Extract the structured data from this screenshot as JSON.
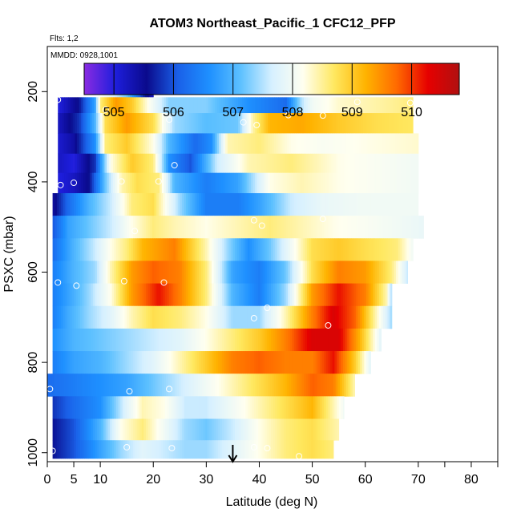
{
  "chart_data": {
    "type": "heatmap",
    "title": "ATOM3 Northeast_Pacific_1 CFC12_PFP",
    "flights_label": "Flts: 1,2",
    "mmdd_label": "MMDD: 0928,1001",
    "xlabel": "Latitude (deg N)",
    "ylabel": "PSXC (mbar)",
    "xlim": [
      0,
      85
    ],
    "ylim": [
      1020,
      100
    ],
    "x_ticks": [
      0,
      5,
      10,
      20,
      30,
      40,
      50,
      60,
      70,
      80
    ],
    "x_ticks_minor": [
      75,
      85
    ],
    "y_ticks": [
      200,
      400,
      600,
      800,
      1000
    ],
    "colorbar": {
      "min": 504.5,
      "max": 510.8,
      "ticks": [
        505,
        506,
        507,
        508,
        509,
        510
      ],
      "stops": [
        "#8a2be2",
        "#1e1edc",
        "#0a0a8c",
        "#1a60e8",
        "#1e90ff",
        "#5cc0ff",
        "#d6f0ff",
        "#fffff0",
        "#ffe860",
        "#ffb300",
        "#ff6a00",
        "#e60000",
        "#b01010"
      ]
    },
    "arrow_latitude": 35,
    "layers": [
      {
        "p": 200,
        "x0": 10,
        "x1": 20,
        "v": [
          [
            10,
            508.2
          ],
          [
            12,
            507.8
          ],
          [
            15,
            507.2
          ],
          [
            18,
            505.8
          ],
          [
            20,
            505.2
          ]
        ]
      },
      {
        "p": 225,
        "x0": 2,
        "x1": 69,
        "v": [
          [
            2,
            505.0
          ],
          [
            6,
            505.6
          ],
          [
            9,
            506.8
          ],
          [
            10,
            508.6
          ],
          [
            13,
            509.4
          ],
          [
            16,
            509.0
          ],
          [
            19,
            508.2
          ],
          [
            23,
            507.3
          ],
          [
            30,
            507.3
          ],
          [
            38,
            506.6
          ],
          [
            45,
            506.2
          ],
          [
            48,
            507.5
          ],
          [
            50,
            508.0
          ],
          [
            55,
            508.3
          ],
          [
            60,
            508.4
          ],
          [
            65,
            508.5
          ],
          [
            69,
            508.6
          ]
        ]
      },
      {
        "p": 270,
        "x0": 2,
        "x1": 69,
        "v": [
          [
            2,
            505.2
          ],
          [
            6,
            505.8
          ],
          [
            9,
            507.0
          ],
          [
            11,
            508.8
          ],
          [
            15,
            509.4
          ],
          [
            20,
            508.8
          ],
          [
            24,
            507.4
          ],
          [
            30,
            507.1
          ],
          [
            36,
            507.2
          ],
          [
            39,
            508.5
          ],
          [
            42,
            509.2
          ],
          [
            48,
            509.3
          ],
          [
            55,
            509.0
          ],
          [
            62,
            508.8
          ],
          [
            69,
            508.7
          ]
        ]
      },
      {
        "p": 315,
        "x0": 2,
        "x1": 70,
        "v": [
          [
            2,
            505.1
          ],
          [
            5,
            505.4
          ],
          [
            9,
            506.6
          ],
          [
            11,
            508.6
          ],
          [
            15,
            509.0
          ],
          [
            20,
            508.2
          ],
          [
            23,
            507.0
          ],
          [
            28,
            506.2
          ],
          [
            31,
            506.6
          ],
          [
            34,
            508.4
          ],
          [
            40,
            508.6
          ],
          [
            46,
            508.2
          ],
          [
            52,
            508.1
          ],
          [
            60,
            508.2
          ],
          [
            70,
            508.3
          ]
        ]
      },
      {
        "p": 360,
        "x0": 2,
        "x1": 70,
        "v": [
          [
            2,
            505.2
          ],
          [
            5,
            505.0
          ],
          [
            9,
            505.8
          ],
          [
            12,
            508.2
          ],
          [
            16,
            509.0
          ],
          [
            20,
            508.6
          ],
          [
            23,
            506.6
          ],
          [
            27,
            506.0
          ],
          [
            32,
            507.6
          ],
          [
            38,
            508.4
          ],
          [
            46,
            508.6
          ],
          [
            55,
            508.2
          ],
          [
            62,
            508.1
          ],
          [
            70,
            508.0
          ]
        ]
      },
      {
        "p": 400,
        "x0": 2,
        "x1": 70,
        "v": [
          [
            2,
            505.0
          ],
          [
            5,
            505.2
          ],
          [
            8,
            505.6
          ],
          [
            11,
            507.2
          ],
          [
            14,
            508.4
          ],
          [
            17,
            508.8
          ],
          [
            21,
            508.6
          ],
          [
            24,
            507.0
          ],
          [
            30,
            506.4
          ],
          [
            36,
            506.8
          ],
          [
            42,
            508.2
          ],
          [
            48,
            508.4
          ],
          [
            55,
            508.2
          ],
          [
            62,
            508.1
          ],
          [
            70,
            508.0
          ]
        ]
      },
      {
        "p": 450,
        "x0": 1,
        "x1": 70,
        "v": [
          [
            1,
            505.4
          ],
          [
            4,
            506.2
          ],
          [
            8,
            507.0
          ],
          [
            12,
            507.6
          ],
          [
            16,
            508.6
          ],
          [
            20,
            508.8
          ],
          [
            25,
            507.4
          ],
          [
            30,
            506.4
          ],
          [
            36,
            506.4
          ],
          [
            40,
            506.8
          ],
          [
            46,
            507.6
          ],
          [
            52,
            507.9
          ],
          [
            60,
            508.0
          ],
          [
            70,
            508.0
          ]
        ]
      },
      {
        "p": 500,
        "x0": 1,
        "x1": 71,
        "v": [
          [
            1,
            506.0
          ],
          [
            4,
            506.8
          ],
          [
            8,
            507.2
          ],
          [
            12,
            507.6
          ],
          [
            16,
            508.2
          ],
          [
            20,
            508.6
          ],
          [
            24,
            508.4
          ],
          [
            30,
            508.2
          ],
          [
            36,
            508.4
          ],
          [
            42,
            508.6
          ],
          [
            48,
            508.4
          ],
          [
            54,
            508.2
          ],
          [
            60,
            508.1
          ],
          [
            66,
            508.0
          ],
          [
            71,
            507.9
          ]
        ]
      },
      {
        "p": 550,
        "x0": 1,
        "x1": 69,
        "v": [
          [
            1,
            506.2
          ],
          [
            5,
            507.0
          ],
          [
            9,
            507.6
          ],
          [
            12,
            508.2
          ],
          [
            15,
            508.6
          ],
          [
            18,
            509.2
          ],
          [
            24,
            509.6
          ],
          [
            30,
            508.4
          ],
          [
            34,
            507.4
          ],
          [
            38,
            506.6
          ],
          [
            42,
            507.2
          ],
          [
            46,
            508.0
          ],
          [
            50,
            508.8
          ],
          [
            55,
            509.0
          ],
          [
            60,
            508.8
          ],
          [
            66,
            508.6
          ],
          [
            69,
            508.0
          ]
        ]
      },
      {
        "p": 600,
        "x0": 1,
        "x1": 68,
        "v": [
          [
            1,
            506.4
          ],
          [
            5,
            507.0
          ],
          [
            9,
            507.4
          ],
          [
            12,
            508.4
          ],
          [
            16,
            509.4
          ],
          [
            20,
            509.8
          ],
          [
            25,
            509.6
          ],
          [
            30,
            508.6
          ],
          [
            35,
            506.8
          ],
          [
            40,
            506.4
          ],
          [
            45,
            507.2
          ],
          [
            50,
            508.8
          ],
          [
            55,
            509.6
          ],
          [
            60,
            509.4
          ],
          [
            65,
            508.6
          ],
          [
            68,
            507.6
          ]
        ]
      },
      {
        "p": 650,
        "x0": 1,
        "x1": 65,
        "v": [
          [
            1,
            506.4
          ],
          [
            4,
            506.8
          ],
          [
            8,
            507.4
          ],
          [
            12,
            508.2
          ],
          [
            16,
            509.4
          ],
          [
            21,
            510.2
          ],
          [
            25,
            509.6
          ],
          [
            30,
            508.6
          ],
          [
            35,
            507.0
          ],
          [
            40,
            506.4
          ],
          [
            45,
            507.4
          ],
          [
            50,
            509.4
          ],
          [
            55,
            510.2
          ],
          [
            60,
            509.6
          ],
          [
            64,
            508.4
          ],
          [
            65,
            507.4
          ]
        ]
      },
      {
        "p": 700,
        "x0": 1,
        "x1": 65,
        "v": [
          [
            1,
            506.4
          ],
          [
            4,
            506.9
          ],
          [
            8,
            507.4
          ],
          [
            12,
            507.8
          ],
          [
            16,
            508.4
          ],
          [
            20,
            508.8
          ],
          [
            25,
            508.6
          ],
          [
            30,
            508.2
          ],
          [
            35,
            507.4
          ],
          [
            40,
            507.4
          ],
          [
            45,
            508.4
          ],
          [
            50,
            509.6
          ],
          [
            54,
            510.4
          ],
          [
            58,
            509.8
          ],
          [
            62,
            508.4
          ],
          [
            65,
            507.4
          ]
        ]
      },
      {
        "p": 750,
        "x0": 1,
        "x1": 63,
        "v": [
          [
            1,
            506.6
          ],
          [
            5,
            507.0
          ],
          [
            10,
            507.2
          ],
          [
            15,
            507.4
          ],
          [
            20,
            507.6
          ],
          [
            25,
            507.8
          ],
          [
            30,
            508.2
          ],
          [
            35,
            508.6
          ],
          [
            40,
            509.0
          ],
          [
            45,
            509.6
          ],
          [
            50,
            510.4
          ],
          [
            55,
            510.4
          ],
          [
            59,
            509.2
          ],
          [
            63,
            507.8
          ]
        ]
      },
      {
        "p": 800,
        "x0": 1,
        "x1": 61,
        "v": [
          [
            1,
            506.4
          ],
          [
            5,
            506.8
          ],
          [
            10,
            507.0
          ],
          [
            15,
            507.4
          ],
          [
            20,
            507.8
          ],
          [
            25,
            508.4
          ],
          [
            30,
            509.0
          ],
          [
            35,
            509.6
          ],
          [
            40,
            509.8
          ],
          [
            45,
            509.6
          ],
          [
            50,
            509.6
          ],
          [
            54,
            510.2
          ],
          [
            58,
            509.0
          ],
          [
            61,
            507.8
          ]
        ]
      },
      {
        "p": 850,
        "x0": 0,
        "x1": 58,
        "v": [
          [
            0,
            506.2
          ],
          [
            5,
            506.4
          ],
          [
            10,
            506.6
          ],
          [
            15,
            506.8
          ],
          [
            20,
            507.2
          ],
          [
            25,
            507.6
          ],
          [
            30,
            508.0
          ],
          [
            35,
            508.4
          ],
          [
            40,
            508.8
          ],
          [
            45,
            509.2
          ],
          [
            50,
            509.8
          ],
          [
            54,
            509.6
          ],
          [
            58,
            508.4
          ]
        ]
      },
      {
        "p": 900,
        "x0": 1,
        "x1": 56,
        "v": [
          [
            1,
            505.8
          ],
          [
            5,
            506.2
          ],
          [
            10,
            506.6
          ],
          [
            15,
            507.8
          ],
          [
            18,
            508.4
          ],
          [
            22,
            508.2
          ],
          [
            26,
            507.6
          ],
          [
            30,
            507.6
          ],
          [
            35,
            508.0
          ],
          [
            40,
            508.4
          ],
          [
            45,
            508.8
          ],
          [
            50,
            509.2
          ],
          [
            53,
            508.6
          ],
          [
            56,
            508.0
          ]
        ]
      },
      {
        "p": 950,
        "x0": 1,
        "x1": 55,
        "v": [
          [
            1,
            505.6
          ],
          [
            5,
            506.0
          ],
          [
            10,
            507.0
          ],
          [
            14,
            508.2
          ],
          [
            18,
            508.6
          ],
          [
            22,
            508.0
          ],
          [
            26,
            507.4
          ],
          [
            30,
            507.2
          ],
          [
            35,
            507.6
          ],
          [
            40,
            508.2
          ],
          [
            45,
            508.6
          ],
          [
            50,
            508.8
          ],
          [
            55,
            508.4
          ]
        ]
      },
      {
        "p": 995,
        "x0": 1,
        "x1": 54,
        "v": [
          [
            1,
            505.6
          ],
          [
            5,
            506.0
          ],
          [
            10,
            506.8
          ],
          [
            14,
            507.4
          ],
          [
            18,
            507.8
          ],
          [
            22,
            507.6
          ],
          [
            26,
            507.4
          ],
          [
            30,
            507.4
          ],
          [
            35,
            507.8
          ],
          [
            40,
            508.2
          ],
          [
            45,
            508.6
          ],
          [
            50,
            508.8
          ],
          [
            54,
            508.6
          ]
        ]
      }
    ],
    "samples": [
      [
        10,
        203
      ],
      [
        19.5,
        199
      ],
      [
        2,
        218
      ],
      [
        11,
        240
      ],
      [
        23,
        262
      ],
      [
        37,
        268
      ],
      [
        39.5,
        274
      ],
      [
        45.5,
        252
      ],
      [
        52,
        253
      ],
      [
        58.5,
        223
      ],
      [
        68.5,
        225
      ],
      [
        24,
        363
      ],
      [
        2.5,
        407
      ],
      [
        5,
        402
      ],
      [
        14,
        399
      ],
      [
        21,
        399
      ],
      [
        16.5,
        509
      ],
      [
        39,
        485
      ],
      [
        40.5,
        497
      ],
      [
        52,
        482
      ],
      [
        2,
        623
      ],
      [
        5.5,
        630
      ],
      [
        14.5,
        620
      ],
      [
        22,
        623
      ],
      [
        41.5,
        679
      ],
      [
        39,
        702
      ],
      [
        53,
        718
      ],
      [
        0.5,
        859
      ],
      [
        15.5,
        864
      ],
      [
        23,
        859
      ],
      [
        1,
        996
      ],
      [
        15,
        988
      ],
      [
        23.5,
        990
      ],
      [
        39,
        988
      ],
      [
        41.5,
        990
      ],
      [
        47.5,
        1008
      ]
    ]
  }
}
